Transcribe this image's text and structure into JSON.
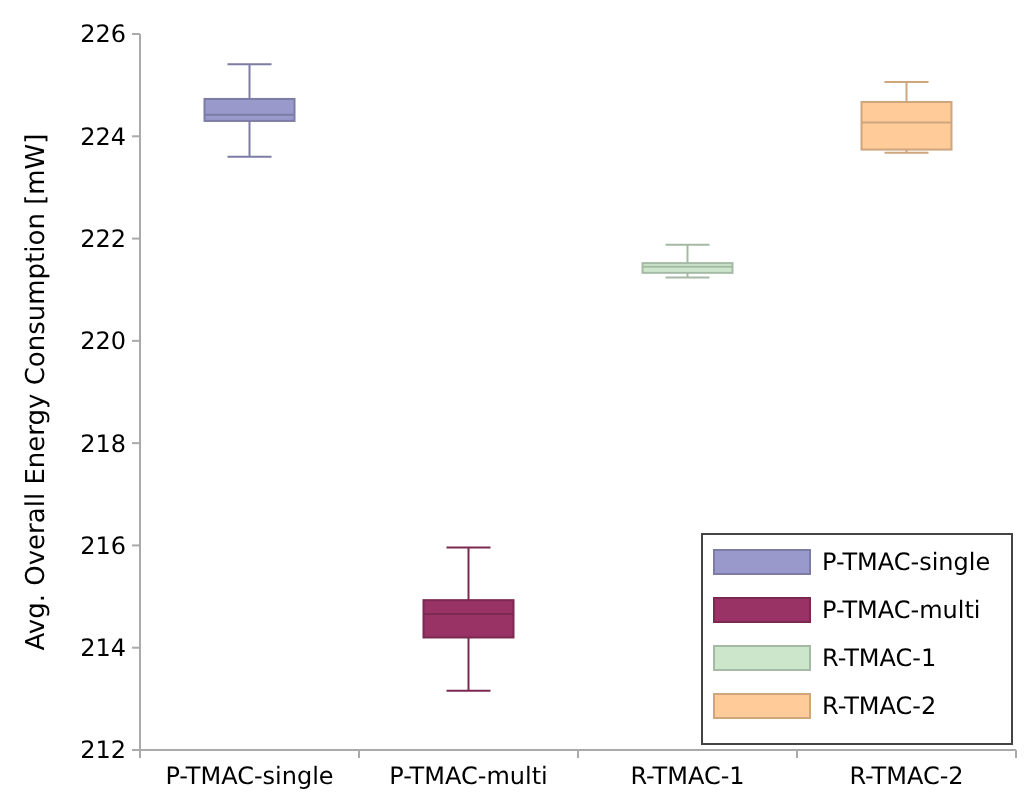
{
  "chart_data": {
    "type": "box",
    "ylabel": "Avg. Overall Energy Consumption [mW]",
    "categories": [
      "P-TMAC-single",
      "P-TMAC-multi",
      "R-TMAC-1",
      "R-TMAC-2"
    ],
    "series": [
      {
        "name": "P-TMAC-single",
        "color": "#9999cc",
        "boxes": [
          {
            "low": 223.6,
            "q1": 224.3,
            "median": 224.42,
            "q3": 224.73,
            "high": 225.41
          },
          null,
          null,
          null
        ]
      },
      {
        "name": "P-TMAC-multi",
        "color": "#993366",
        "boxes": [
          null,
          {
            "low": 213.16,
            "q1": 214.2,
            "median": 214.66,
            "q3": 214.93,
            "high": 215.96
          },
          null,
          null
        ]
      },
      {
        "name": "R-TMAC-1",
        "color": "#cce6cc",
        "boxes": [
          null,
          null,
          {
            "low": 221.24,
            "q1": 221.33,
            "median": 221.45,
            "q3": 221.52,
            "high": 221.88
          },
          null
        ]
      },
      {
        "name": "R-TMAC-2",
        "color": "#ffcc99",
        "boxes": [
          null,
          null,
          null,
          {
            "low": 223.68,
            "q1": 223.74,
            "median": 224.27,
            "q3": 224.67,
            "high": 225.06
          }
        ]
      }
    ],
    "ylim": [
      212,
      226
    ],
    "yticks": [
      212,
      214,
      216,
      218,
      220,
      222,
      224,
      226
    ],
    "legend": "bottom right"
  }
}
